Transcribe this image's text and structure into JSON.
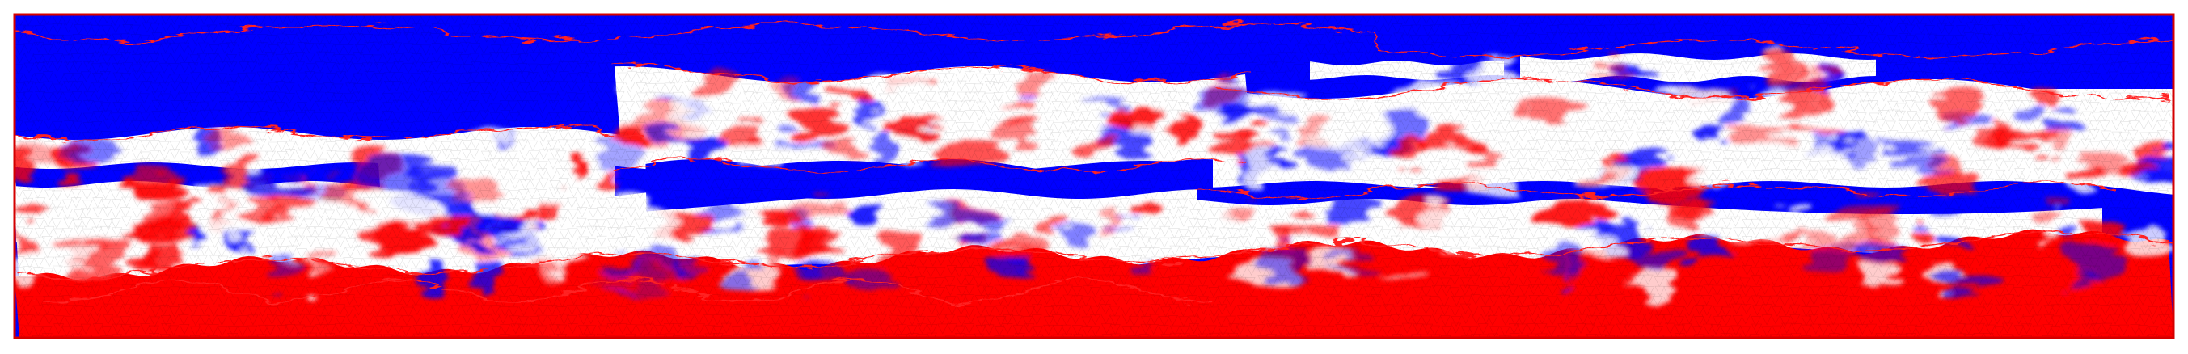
{
  "figure": {
    "kind": "triangular-mesh-field",
    "colormap": [
      "#0000ff",
      "#ffffff",
      "#ff0000"
    ],
    "mesh_line_color": "#000000",
    "contour_color": "#ff2020",
    "frame_color": "#d40000",
    "background_color": "#ffffff"
  }
}
